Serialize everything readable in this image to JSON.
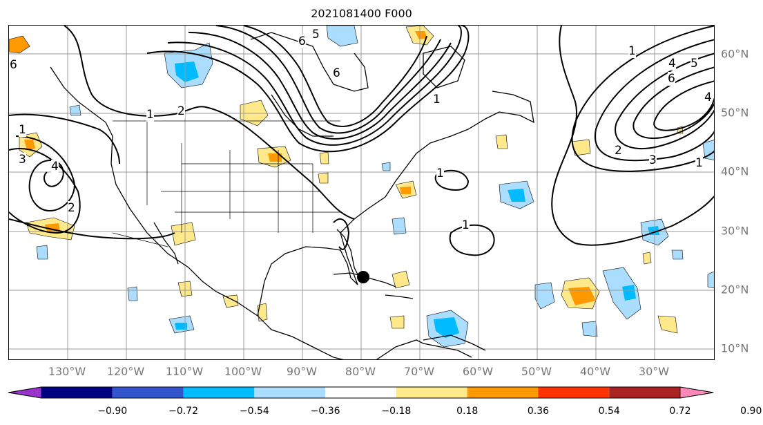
{
  "title": "2021081400 F000",
  "longitude_labels": [
    "130°W",
    "120°W",
    "110°W",
    "100°W",
    "90°W",
    "80°W",
    "70°W",
    "60°W",
    "50°W",
    "40°W",
    "30°W"
  ],
  "latitude_labels": [
    "60°N",
    "50°N",
    "40°N",
    "30°N",
    "20°N",
    "10°N"
  ],
  "contour_labels": [
    "6",
    "5",
    "2",
    "1",
    "1",
    "3",
    "4",
    "2",
    "6",
    "5",
    "4",
    "6",
    "5",
    "1",
    "2",
    "1",
    "1",
    "1",
    "2",
    "3",
    "4",
    "5",
    "6",
    "1",
    "4",
    "3",
    "2",
    "1"
  ],
  "colorbar": {
    "tick_labels": [
      "−0.90",
      "−0.72",
      "−0.54",
      "−0.36",
      "−0.18",
      "0.18",
      "0.36",
      "0.54",
      "0.72",
      "0.90"
    ],
    "colors": [
      "#9933cc",
      "#000080",
      "#3355cc",
      "#00bbff",
      "#aaddff",
      "#ffffff",
      "#ffe98a",
      "#ff9900",
      "#ff3300",
      "#aa2222",
      "#ff88bb"
    ]
  },
  "marker": {
    "label": "storm-center",
    "color": "#000000"
  }
}
